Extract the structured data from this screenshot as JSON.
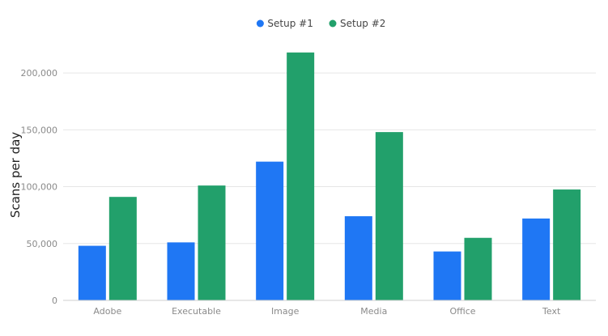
{
  "chart_data": {
    "type": "bar",
    "title": "",
    "xlabel": "",
    "ylabel": "Scans per day",
    "categories": [
      "Adobe",
      "Executable",
      "Image",
      "Media",
      "Office",
      "Text"
    ],
    "series": [
      {
        "name": "Setup #1",
        "color": "#1f77f4",
        "values": [
          48000,
          51000,
          122000,
          74000,
          43000,
          72000
        ]
      },
      {
        "name": "Setup #2",
        "color": "#22a06b",
        "values": [
          91000,
          101000,
          218000,
          148000,
          55000,
          97500
        ]
      }
    ],
    "ylim": [
      0,
      220000
    ],
    "yticks": [
      0,
      50000,
      100000,
      150000,
      200000
    ],
    "ytick_labels": [
      "0",
      "50,000",
      "100,000",
      "150,000",
      "200,000"
    ],
    "grid": true,
    "legend_position": "top-center"
  }
}
